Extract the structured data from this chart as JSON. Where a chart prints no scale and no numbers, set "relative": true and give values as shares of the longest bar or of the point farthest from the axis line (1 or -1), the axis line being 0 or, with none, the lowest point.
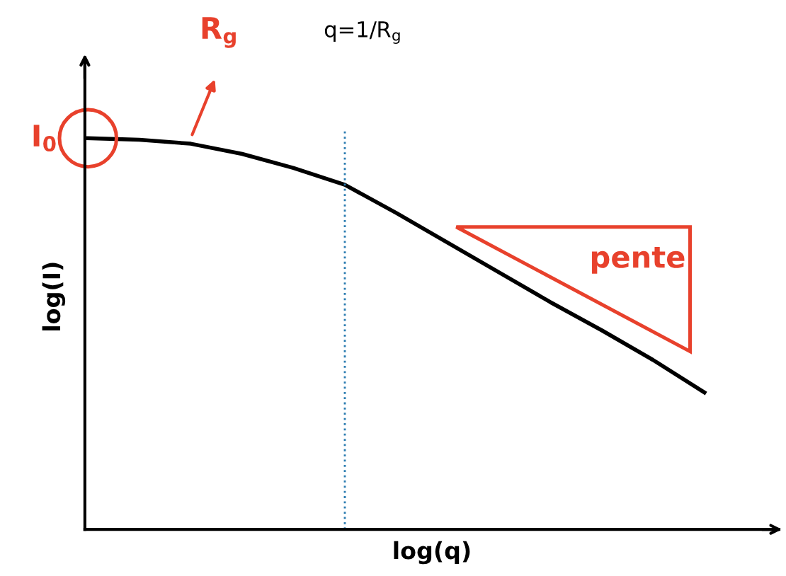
{
  "chart_data": {
    "type": "line",
    "relative": true,
    "xlabel": "log(q)",
    "ylabel": "log(I)",
    "categories": [
      null,
      null,
      null,
      null,
      null,
      null,
      null,
      null,
      null,
      null,
      null,
      null,
      null
    ],
    "series": [
      {
        "color": "#000000",
        "values": [
          1,
          0.996,
          0.986,
          0.96,
          0.924,
          0.881,
          0.809,
          0.733,
          0.657,
          0.581,
          0.509,
          0.433,
          0.35
        ]
      }
    ],
    "annotations": [
      "I$_{0}$",
      "R$_{g}$",
      "pente",
      "q=1/R$_{g}$"
    ],
    "marker": "none",
    "line_style": "solid"
  }
}
